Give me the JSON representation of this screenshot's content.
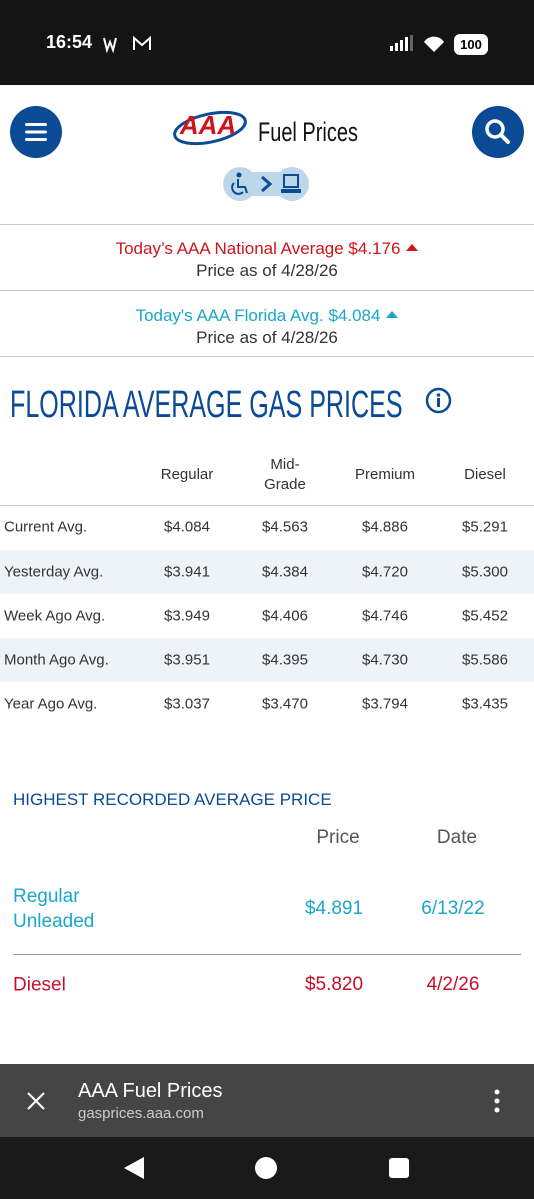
{
  "status_bar": {
    "time": "16:54",
    "battery": "100"
  },
  "header": {
    "title": "Fuel Prices"
  },
  "national": {
    "label": "Today’s AAA National Average $4.176",
    "date": "Price as of 4/28/26"
  },
  "florida": {
    "label": "Today's AAA Florida Avg. $4.084",
    "date": "Price as of 4/28/26"
  },
  "heading": "FLORIDA AVERAGE GAS PRICES",
  "table": {
    "columns": [
      "Regular",
      "Mid-Grade",
      "Premium",
      "Diesel"
    ],
    "rows": [
      [
        "Current Avg.",
        "$4.084",
        "$4.563",
        "$4.886",
        "$5.291"
      ],
      [
        "Yesterday Avg.",
        "$3.941",
        "$4.384",
        "$4.720",
        "$5.300"
      ],
      [
        "Week Ago Avg.",
        "$3.949",
        "$4.406",
        "$4.746",
        "$5.452"
      ],
      [
        "Month Ago Avg.",
        "$3.951",
        "$4.395",
        "$4.730",
        "$5.586"
      ],
      [
        "Year Ago Avg.",
        "$3.037",
        "$3.470",
        "$3.794",
        "$3.435"
      ]
    ]
  },
  "record": {
    "title": "HIGHEST RECORDED AVERAGE PRICE",
    "columns": [
      "Price",
      "Date"
    ],
    "rows": [
      [
        "Regular Unleaded",
        "$4.891",
        "6/13/22"
      ],
      [
        "Diesel",
        "$5.820",
        "4/2/26"
      ]
    ]
  },
  "browser_bar": {
    "title": "AAA Fuel Prices",
    "url": "gasprices.aaa.com"
  }
}
